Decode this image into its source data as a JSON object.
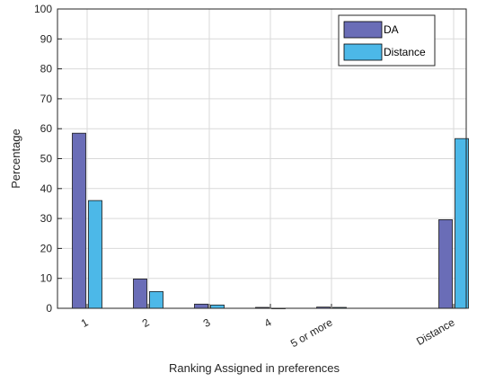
{
  "chart_data": {
    "type": "bar",
    "categories": [
      "1",
      "2",
      "3",
      "4",
      "5 or more",
      "Distance"
    ],
    "series": [
      {
        "name": "DA",
        "values": [
          58.5,
          9.8,
          1.4,
          0.3,
          0.4,
          29.6
        ],
        "color": "#6a6db7"
      },
      {
        "name": "Distance",
        "values": [
          36.0,
          5.6,
          1.1,
          0.0,
          0.3,
          56.7
        ],
        "color": "#4cb8e8"
      }
    ],
    "title": "",
    "xlabel": "Ranking Assigned in preferences",
    "ylabel": "Percentage",
    "ylim": [
      0,
      100
    ],
    "yticks": [
      0,
      10,
      20,
      30,
      40,
      50,
      60,
      70,
      80,
      90,
      100
    ],
    "grid": true,
    "legend": "top-right"
  }
}
